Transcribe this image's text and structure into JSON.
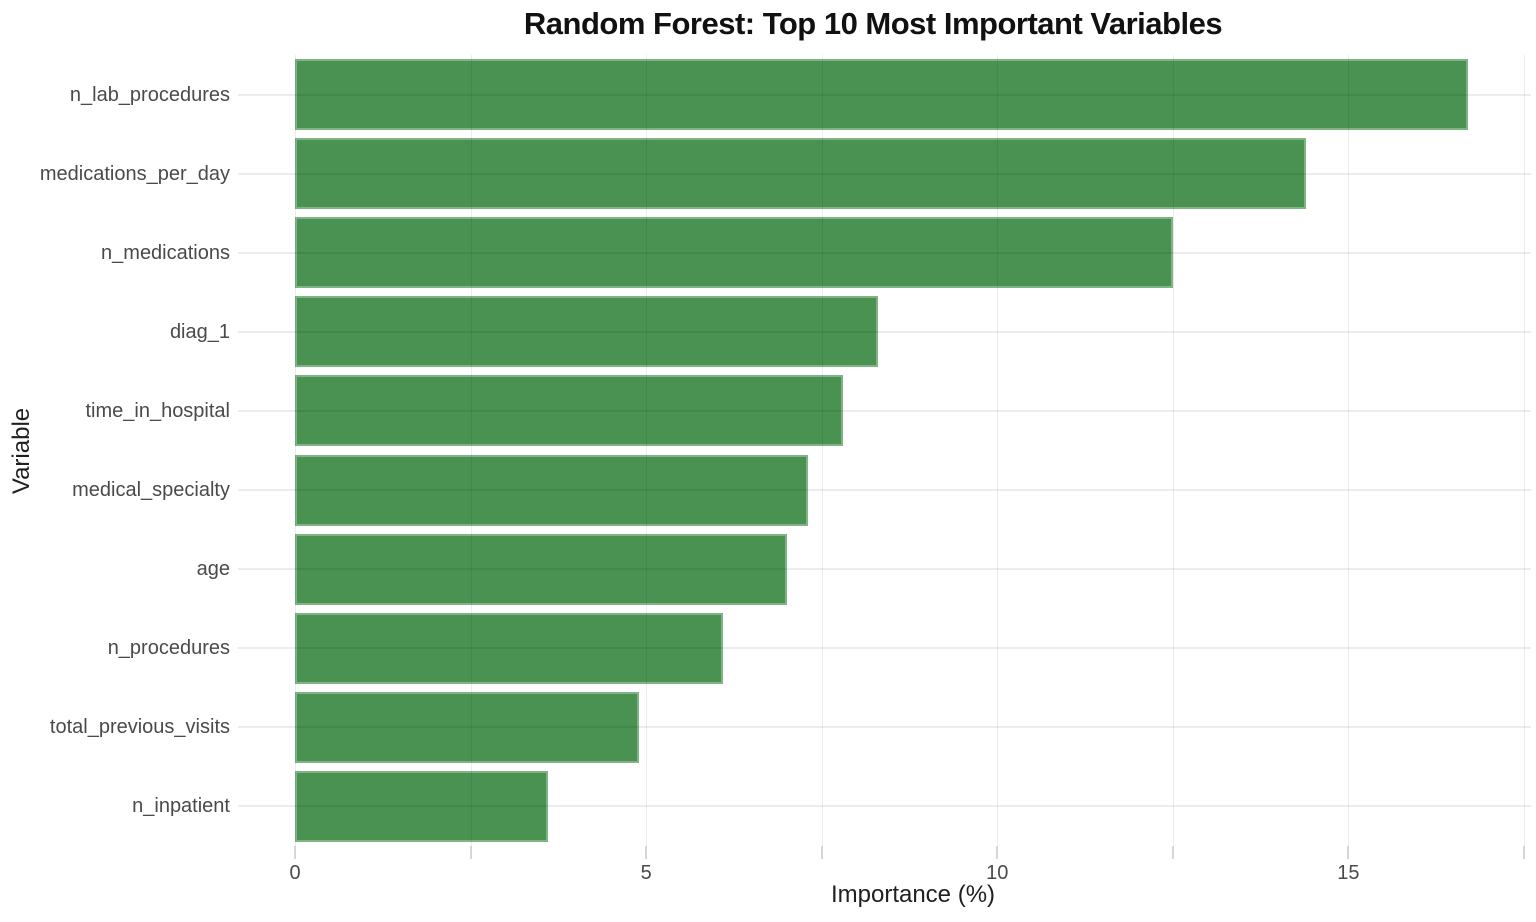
{
  "chart_data": {
    "type": "bar",
    "orientation": "horizontal",
    "title": "Random Forest: Top 10 Most Important Variables",
    "xlabel": "Importance (%)",
    "ylabel": "Variable",
    "categories": [
      "n_lab_procedures",
      "medications_per_day",
      "n_medications",
      "diag_1",
      "time_in_hospital",
      "medical_specialty",
      "age",
      "n_procedures",
      "total_previous_visits",
      "n_inpatient"
    ],
    "values": [
      16.7,
      14.4,
      12.5,
      8.3,
      7.8,
      7.3,
      7.0,
      6.1,
      4.9,
      3.6
    ],
    "xlim": [
      0,
      17.6
    ],
    "x_major_tick_values": [
      0,
      5,
      10,
      15
    ],
    "x_major_tick_labels": [
      "0",
      "5",
      "10",
      "15"
    ],
    "x_minor_tick_interval": 2.5,
    "grid": true,
    "legend": false,
    "colors": {
      "bar": "#4A9252",
      "bar_edge": "rgba(255,255,255,0.30)",
      "grid": "rgba(0,0,0,0.075)",
      "tick_mark": "#D6D6D6",
      "tick_label": "#4A4A4A",
      "axis_title": "#1F1F1F",
      "title": "#111111",
      "background": "#FFFFFF"
    }
  }
}
